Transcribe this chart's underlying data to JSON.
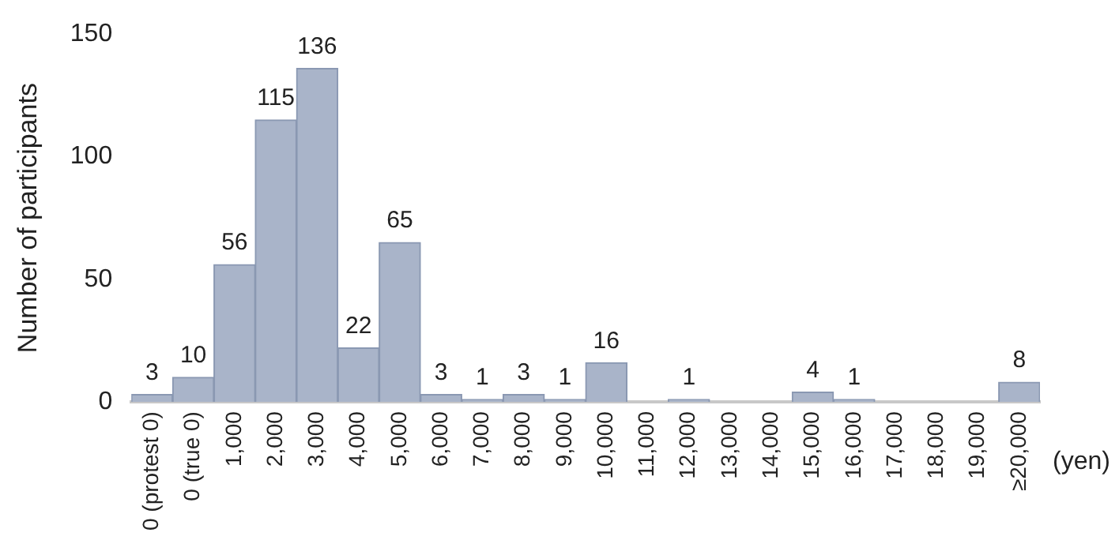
{
  "chart_data": {
    "type": "bar",
    "ylabel": "Number of participants",
    "xlabel": "(yen)",
    "categories": [
      "0 (protest 0)",
      "0 (true 0)",
      "1,000",
      "2,000",
      "3,000",
      "4,000",
      "5,000",
      "6,000",
      "7,000",
      "8,000",
      "9,000",
      "10,000",
      "11,000",
      "12,000",
      "13,000",
      "14,000",
      "15,000",
      "16,000",
      "17,000",
      "18,000",
      "19,000",
      "≥20,000"
    ],
    "values": [
      3,
      10,
      56,
      115,
      136,
      22,
      65,
      3,
      1,
      3,
      1,
      16,
      0,
      1,
      0,
      0,
      4,
      1,
      0,
      0,
      0,
      8
    ],
    "value_labels": [
      "3",
      "10",
      "56",
      "115",
      "136",
      "22",
      "65",
      "3",
      "1",
      "3",
      "1",
      "16",
      null,
      "1",
      null,
      null,
      "4",
      "1",
      null,
      null,
      null,
      "8"
    ],
    "color": "#a9b4c9",
    "ylim": [
      0,
      150
    ],
    "yticks": [
      0,
      50,
      100,
      150
    ],
    "grid": false,
    "legend": false
  }
}
